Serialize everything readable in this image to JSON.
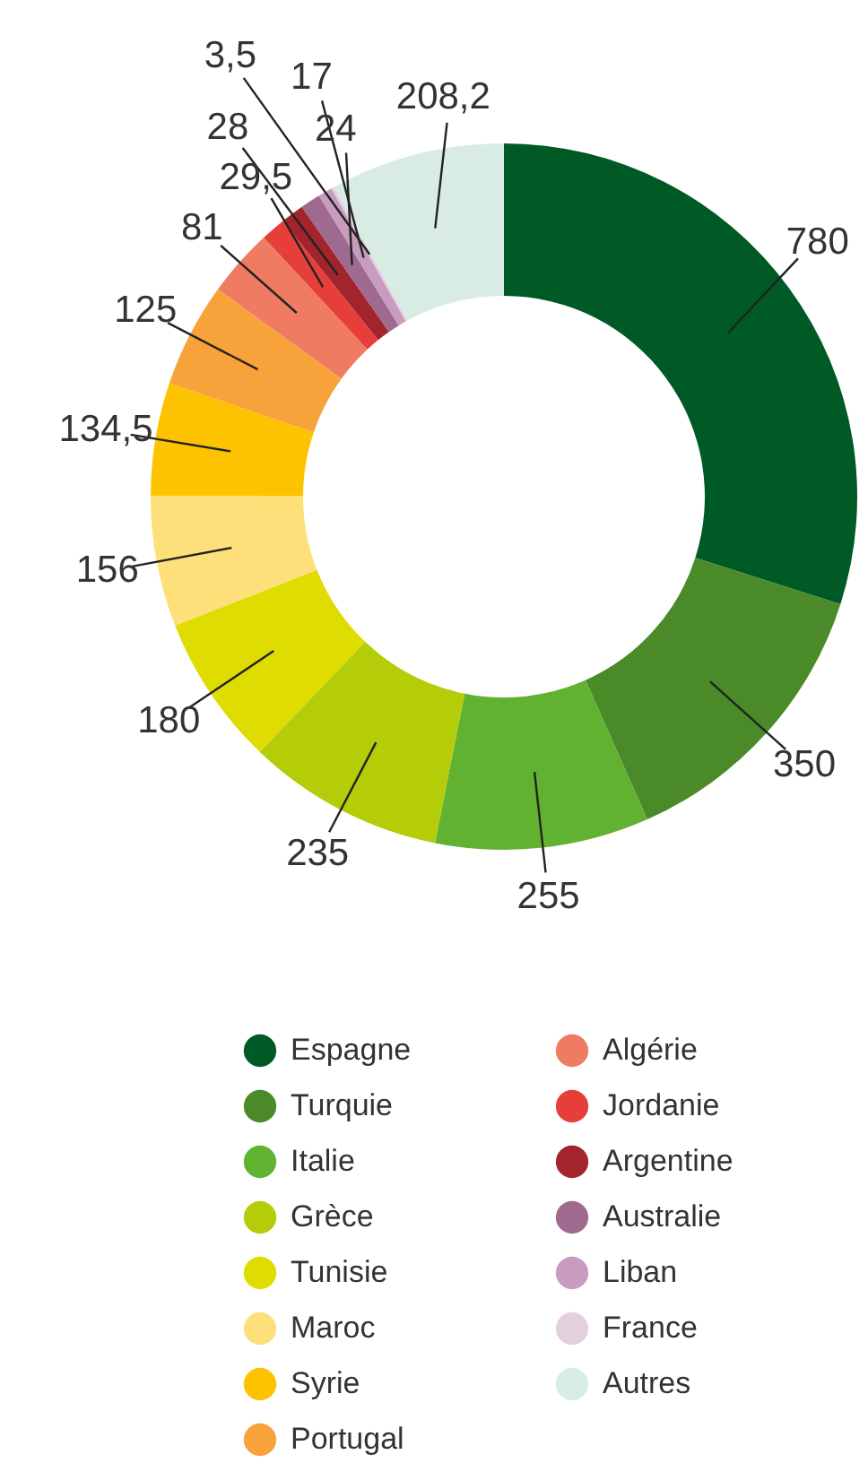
{
  "chart_data": {
    "type": "donut",
    "categories": [
      "Espagne",
      "Turquie",
      "Italie",
      "Grèce",
      "Tunisie",
      "Maroc",
      "Syrie",
      "Portugal",
      "Algérie",
      "Jordanie",
      "Argentine",
      "Australie",
      "Liban",
      "France",
      "Autres"
    ],
    "values": [
      780,
      350,
      255,
      235,
      180,
      156,
      134.5,
      125,
      81,
      29.5,
      28,
      24,
      17,
      3.5,
      208.2
    ],
    "value_labels": [
      "780",
      "350",
      "255",
      "235",
      "180",
      "156",
      "134,5",
      "125",
      "81",
      "29,5",
      "28",
      "24",
      "17",
      "3,5",
      "208,2"
    ],
    "colors": [
      "#005a26",
      "#4a8a28",
      "#62b232",
      "#b5cc08",
      "#dedc00",
      "#fde07a",
      "#fdc300",
      "#f7a23a",
      "#ef7b62",
      "#e63f3a",
      "#a3242d",
      "#9e6a8f",
      "#c89cbf",
      "#e4d0dc",
      "#d9ece3"
    ],
    "legend": "bottom"
  }
}
